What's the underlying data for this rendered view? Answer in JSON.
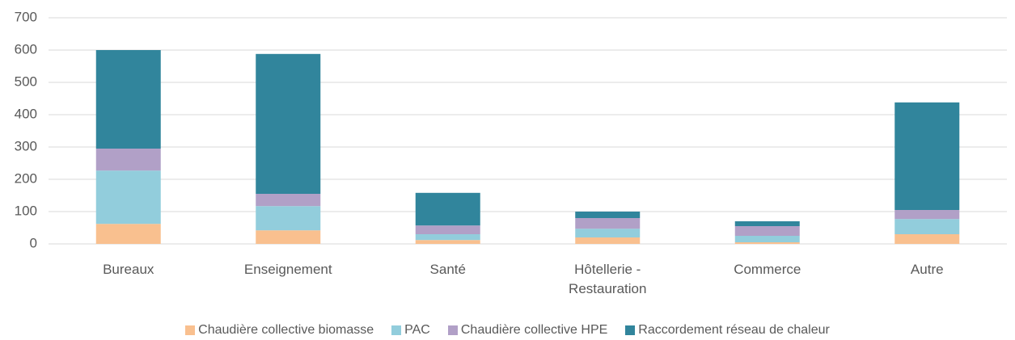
{
  "chart_data": {
    "type": "stacked_bar",
    "categories": [
      "Bureaux",
      "Enseignement",
      "Santé",
      "Hôtellerie - Restauration",
      "Commerce",
      "Autre"
    ],
    "series": [
      {
        "name": "Chaudière collective biomasse",
        "color": "#f9c08f",
        "values": [
          62,
          42,
          12,
          20,
          5,
          30
        ]
      },
      {
        "name": "PAC",
        "color": "#92cddc",
        "values": [
          165,
          75,
          18,
          27,
          20,
          47
        ]
      },
      {
        "name": "Chaudière collective HPE",
        "color": "#b1a0c7",
        "values": [
          68,
          38,
          27,
          33,
          30,
          28
        ]
      },
      {
        "name": "Raccordement réseau de chaleur",
        "color": "#31859c",
        "values": [
          305,
          433,
          101,
          20,
          15,
          333
        ]
      }
    ],
    "ylim": [
      0,
      700
    ],
    "yticks": [
      0,
      100,
      200,
      300,
      400,
      500,
      600,
      700
    ],
    "grid": true
  }
}
